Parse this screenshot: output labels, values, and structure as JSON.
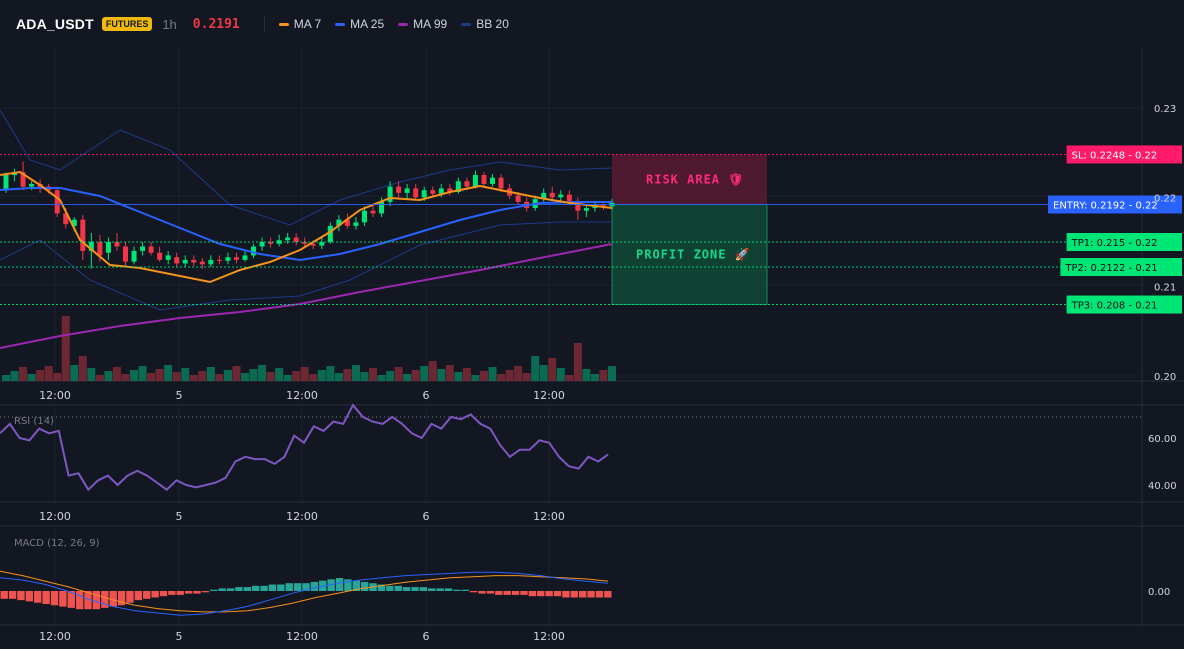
{
  "header": {
    "symbol": "ADA_USDT",
    "badge": "FUTURES",
    "timeframe": "1h",
    "last_price": "0.2191",
    "last_price_color": "#f23645",
    "legend": [
      {
        "label": "MA 7",
        "color": "#f7931a"
      },
      {
        "label": "MA 25",
        "color": "#2962ff"
      },
      {
        "label": "MA 99",
        "color": "#9c27b0"
      },
      {
        "label": "BB 20",
        "color": "#1e3a8a"
      }
    ]
  },
  "colors": {
    "up": "#00e676",
    "down": "#f23645",
    "background": "#131722",
    "grid": "#1e222d"
  },
  "trade_levels": [
    {
      "kind": "sl",
      "label": "SL: 0.2248 - 0.22",
      "price": 0.2248,
      "color": "#ff1a6a"
    },
    {
      "kind": "entry",
      "label": "ENTRY: 0.2192 - 0.22",
      "price": 0.2192,
      "color": "#2962ff"
    },
    {
      "kind": "tp",
      "label": "TP1: 0.215 - 0.22",
      "price": 0.215,
      "color": "#00e676"
    },
    {
      "kind": "tp",
      "label": "TP2: 0.2122 - 0.21",
      "price": 0.2122,
      "color": "#00e676"
    },
    {
      "kind": "tp",
      "label": "TP3: 0.208 - 0.21",
      "price": 0.208,
      "color": "#00e676"
    }
  ],
  "zones": {
    "risk_label": "RISK AREA 🛡",
    "profit_label": "PROFIT ZONE 🚀"
  },
  "price_axis": {
    "ticks": [
      "0.23",
      "0.22",
      "0.21",
      "0.20"
    ],
    "tick_values": [
      0.23,
      0.22,
      0.21,
      0.2
    ]
  },
  "time_axis": {
    "labels": [
      "12:00",
      "5",
      "12:00",
      "6",
      "12:00"
    ]
  },
  "rsi": {
    "label": "RSI (14)",
    "ticks": [
      "60.00",
      "40.00"
    ],
    "tick_values": [
      60,
      40
    ],
    "values": [
      62,
      66,
      60,
      59,
      64,
      62,
      63,
      44,
      45,
      38,
      42,
      44,
      40,
      44,
      46,
      44,
      41,
      38,
      42,
      40,
      39,
      40,
      41,
      43,
      50,
      52,
      51,
      51,
      49,
      52,
      61,
      58,
      65,
      63,
      67,
      66,
      74,
      69,
      67,
      66,
      69,
      66,
      62,
      60,
      66,
      64,
      69,
      68,
      70,
      66,
      64,
      57,
      52,
      55,
      55,
      59,
      58,
      52,
      48,
      47,
      52,
      50,
      53
    ]
  },
  "macd": {
    "label": "MACD (12, 26, 9)",
    "ticks": [
      "0.00"
    ],
    "histogram": [
      -3,
      -3,
      -3.5,
      -4,
      -4.5,
      -5,
      -5.5,
      -6,
      -6.5,
      -7,
      -7,
      -7,
      -6.5,
      -6,
      -5.5,
      -4.5,
      -3.5,
      -3,
      -2.5,
      -2,
      -1.5,
      -1.5,
      -1,
      -1,
      -0.5,
      0.5,
      1,
      1,
      1.5,
      1.5,
      2,
      2,
      2.5,
      2.5,
      3,
      3,
      3,
      3.5,
      4,
      4.5,
      5,
      4.5,
      4,
      3.5,
      3,
      2.5,
      2,
      2,
      1.5,
      1.5,
      1.5,
      1,
      1,
      1,
      0.5,
      0.5,
      -0.5,
      -1,
      -1,
      -1.5,
      -1.5,
      -1.5,
      -1.5,
      -2,
      -2,
      -2,
      -2,
      -2.5,
      -2.5,
      -2.5,
      -2.5,
      -2.5,
      -2.5
    ],
    "macd_line": [
      6,
      5,
      3,
      0,
      -4,
      -7,
      -9,
      -10,
      -11,
      -10.5,
      -9,
      -7,
      -4,
      -1,
      1.5,
      3.5,
      5,
      6,
      7,
      7.5,
      8,
      8.5,
      8.5,
      8,
      7,
      5.5,
      4.5,
      3.5
    ],
    "signal_line": [
      9,
      7,
      4.5,
      2,
      -1,
      -4,
      -6.5,
      -8,
      -9,
      -9.5,
      -9.5,
      -9,
      -7.5,
      -5.5,
      -3,
      -1,
      1,
      2.5,
      4,
      5,
      6,
      6.5,
      7,
      7,
      6.5,
      6,
      5.5,
      4.5
    ]
  }
}
